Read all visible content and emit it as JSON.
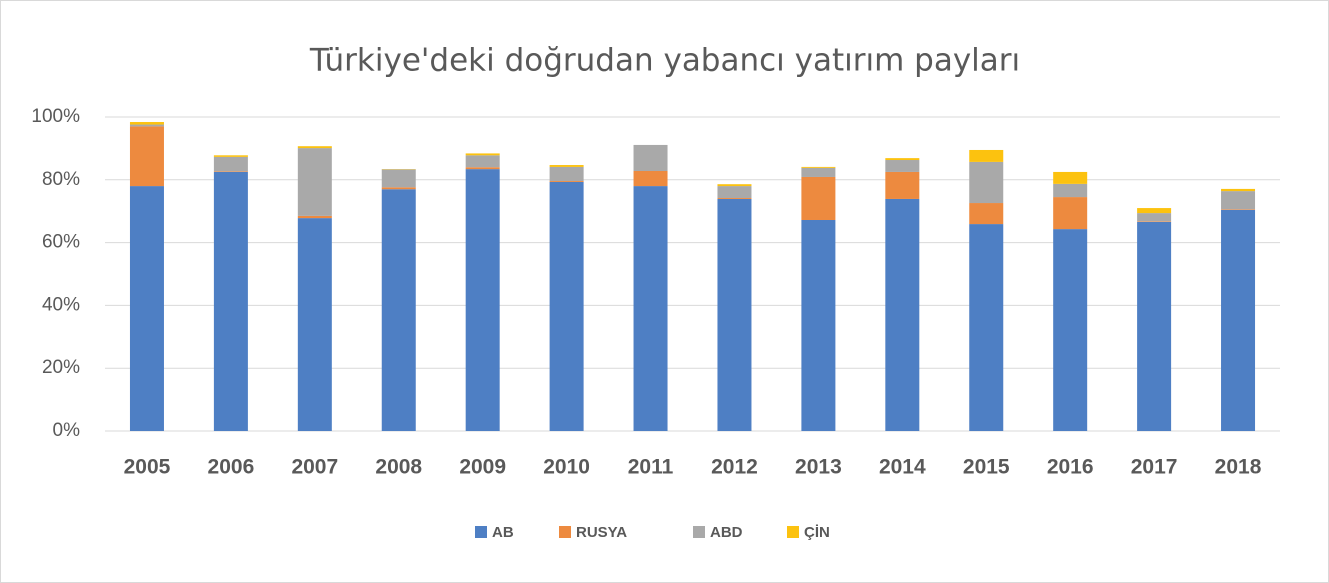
{
  "chart_data": {
    "type": "stacked_bar",
    "title": "Türkiye'deki doğrudan yabancı yatırım payları",
    "categories": [
      "2005",
      "2006",
      "2007",
      "2008",
      "2009",
      "2010",
      "2011",
      "2012",
      "2013",
      "2014",
      "2015",
      "2016",
      "2017",
      "2018"
    ],
    "series": [
      {
        "name": "AB",
        "color": "#4e7fc4",
        "values": [
          78,
          82.5,
          67.8,
          77,
          83.4,
          79.3,
          78,
          73.9,
          67.2,
          73.9,
          65.9,
          64.3,
          66.6,
          70.4
        ]
      },
      {
        "name": "RUSYA",
        "color": "#ed8a3f",
        "values": [
          19,
          0.2,
          0.7,
          0.6,
          0.6,
          0.3,
          4.8,
          0.3,
          13.7,
          8.6,
          6.7,
          10.2,
          0.2,
          0.2
        ]
      },
      {
        "name": "ABD",
        "color": "#a9a9a9",
        "values": [
          0.6,
          4.6,
          21.6,
          5.7,
          3.8,
          4.5,
          8.3,
          3.8,
          2.9,
          3.8,
          13.1,
          4.2,
          2.6,
          5.8
        ]
      },
      {
        "name": "ÇİN",
        "color": "#fcc20f",
        "values": [
          0.8,
          0.5,
          0.6,
          0.1,
          0.6,
          0.6,
          0,
          0.6,
          0.3,
          0.6,
          3.8,
          3.8,
          1.6,
          0.7
        ]
      }
    ],
    "ylim": [
      0,
      100
    ],
    "yticks": [
      {
        "value": 0,
        "label": "0%"
      },
      {
        "value": 20,
        "label": "20%"
      },
      {
        "value": 40,
        "label": "40%"
      },
      {
        "value": 60,
        "label": "60%"
      },
      {
        "value": 80,
        "label": "80%"
      },
      {
        "value": 100,
        "label": "100%"
      }
    ],
    "grid": true,
    "legend": "bottom"
  }
}
